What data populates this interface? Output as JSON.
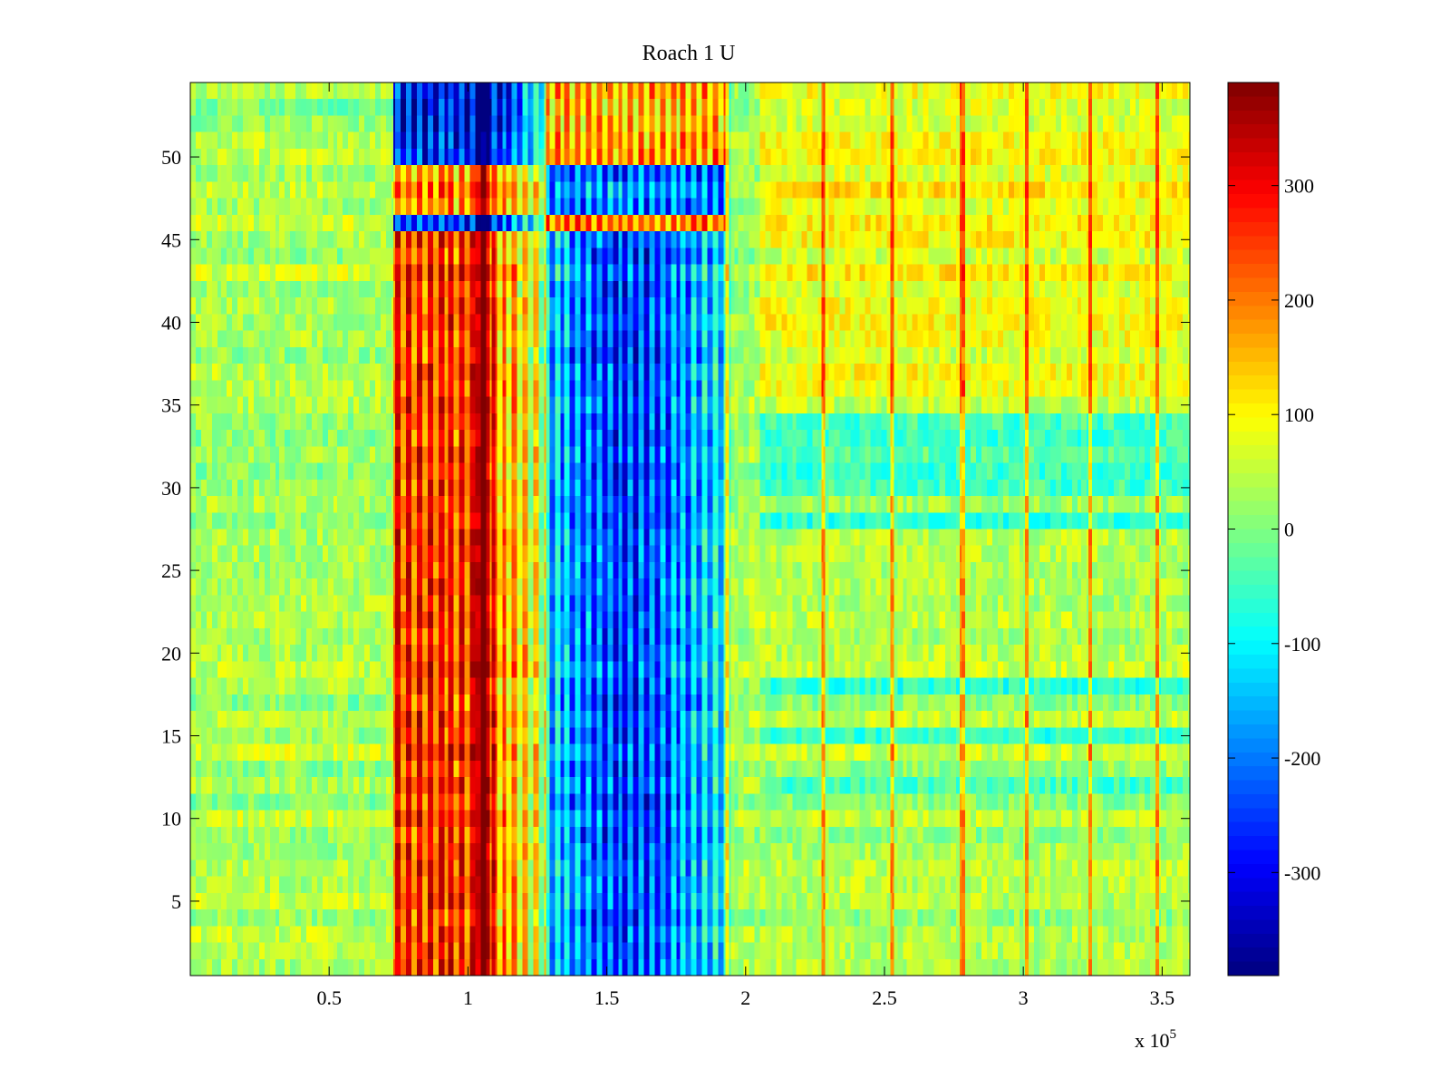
{
  "chart_data": {
    "type": "heatmap",
    "title": "Roach 1 U",
    "xlabel": "",
    "ylabel": "",
    "x_range": [
      0,
      360000
    ],
    "y_range": [
      0.5,
      54.5
    ],
    "rows": 54,
    "x_ticks": {
      "values": [
        50000,
        100000,
        150000,
        200000,
        250000,
        300000,
        350000
      ],
      "labels": [
        "0.5",
        "1",
        "1.5",
        "2",
        "2.5",
        "3",
        "3.5"
      ]
    },
    "x_multiplier_label": "x 10",
    "x_multiplier_exponent": "5",
    "y_ticks": {
      "values": [
        5,
        10,
        15,
        20,
        25,
        30,
        35,
        40,
        45,
        50
      ],
      "labels": [
        "5",
        "10",
        "15",
        "20",
        "25",
        "30",
        "35",
        "40",
        "45",
        "50"
      ]
    },
    "colorbar": {
      "colormap": "jet",
      "range": [
        -390,
        390
      ],
      "ticks": [
        -300,
        -200,
        -100,
        0,
        100,
        200,
        300
      ],
      "tick_labels": [
        "-300",
        "-200",
        "-100",
        "0",
        "100",
        "200",
        "300"
      ]
    },
    "grid": false,
    "colors": {
      "jet_dark_blue": "#00008f",
      "jet_blue": "#0000ff",
      "jet_cyan": "#00ffff",
      "jet_yellow": "#ffff00",
      "jet_red": "#ff0000",
      "jet_dark_red": "#800000"
    }
  }
}
